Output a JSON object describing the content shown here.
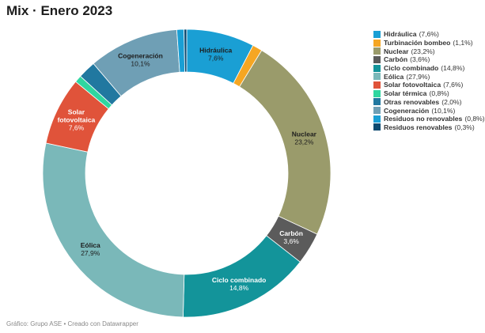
{
  "title": "Mix · Enero 2023",
  "footer": "Gráfico: Grupo ASE • Creado con Datawrapper",
  "chart_data": {
    "type": "pie",
    "title": "Mix · Enero 2023",
    "legend_position": "right",
    "slices": [
      {
        "name": "Hidráulica",
        "value": 7.6,
        "value_label": "7,6%",
        "color": "#1a9fd4",
        "labeled": true
      },
      {
        "name": "Turbinación bombeo",
        "value": 1.1,
        "value_label": "1,1%",
        "color": "#f5a623",
        "labeled": false
      },
      {
        "name": "Nuclear",
        "value": 23.2,
        "value_label": "23,2%",
        "color": "#9a9b6b",
        "labeled": true
      },
      {
        "name": "Carbón",
        "value": 3.6,
        "value_label": "3,6%",
        "color": "#5b5b5b",
        "labeled": true
      },
      {
        "name": "Ciclo combinado",
        "value": 14.8,
        "value_label": "14,8%",
        "color": "#13949a",
        "labeled": true
      },
      {
        "name": "Eólica",
        "value": 27.9,
        "value_label": "27,9%",
        "color": "#7ab8b9",
        "labeled": true
      },
      {
        "name": "Solar fotovoltaica",
        "value": 7.6,
        "value_label": "7,6%",
        "color": "#e0533a",
        "labeled": true
      },
      {
        "name": "Solar térmica",
        "value": 0.8,
        "value_label": "0,8%",
        "color": "#2fd6a0",
        "labeled": false
      },
      {
        "name": "Otras renovables",
        "value": 2.0,
        "value_label": "2,0%",
        "color": "#2178a0",
        "labeled": false
      },
      {
        "name": "Cogeneración",
        "value": 10.1,
        "value_label": "10,1%",
        "color": "#6f9fb5",
        "labeled": true
      },
      {
        "name": "Residuos no renovables",
        "value": 0.8,
        "value_label": "0,8%",
        "color": "#1a9fd4",
        "labeled": false
      },
      {
        "name": "Residuos renovables",
        "value": 0.3,
        "value_label": "0,3%",
        "color": "#0d4a70",
        "labeled": false
      }
    ]
  }
}
